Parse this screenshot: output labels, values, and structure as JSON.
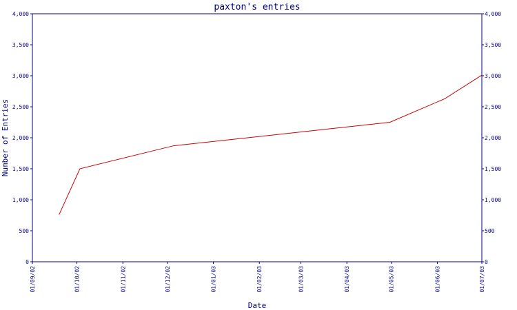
{
  "chart_data": {
    "type": "line",
    "title": "paxton's entries",
    "xlabel": "Date",
    "ylabel": "Number of Entries",
    "ylim": [
      0,
      4000
    ],
    "y_ticks": [
      0,
      500,
      1000,
      1500,
      2000,
      2500,
      3000,
      3500,
      4000
    ],
    "y_tick_labels": [
      "0",
      "500",
      "1,000",
      "1,500",
      "2,000",
      "2,500",
      "3,000",
      "3,500",
      "4,000"
    ],
    "x_ticks": [
      "2002-09-01",
      "2002-10-01",
      "2002-11-01",
      "2002-12-01",
      "2003-01-01",
      "2003-02-01",
      "2003-03-01",
      "2003-04-01",
      "2003-05-01",
      "2003-06-01",
      "2003-07-01"
    ],
    "x_tick_labels": [
      "01/09/02",
      "01/10/02",
      "01/11/02",
      "01/12/02",
      "01/01/03",
      "01/02/03",
      "01/03/03",
      "01/04/03",
      "01/05/03",
      "01/06/03",
      "01/07/03"
    ],
    "xlim": [
      "2002-09-01",
      "2003-07-01"
    ],
    "grid": false,
    "y_axis_both_sides": true,
    "series": [
      {
        "color": "#cc0000",
        "x": [
          "2002-09-19",
          "2002-10-03",
          "2002-12-05",
          "2003-04-30",
          "2003-06-06",
          "2003-07-01"
        ],
        "y": [
          760,
          1500,
          1870,
          2250,
          2630,
          3010
        ]
      }
    ]
  }
}
